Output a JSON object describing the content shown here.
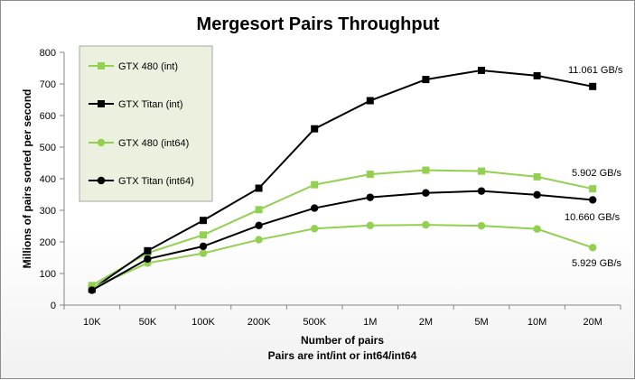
{
  "chart_data": {
    "type": "line",
    "title": "Mergesort Pairs Throughput",
    "xlabel": "Number of pairs",
    "xlabel_sub": "Pairs are int/int or int64/int64",
    "ylabel": "Millions of pairs sorted per second",
    "categories": [
      "10K",
      "50K",
      "100K",
      "200K",
      "500K",
      "1M",
      "2M",
      "5M",
      "10M",
      "20M"
    ],
    "ylim": [
      0,
      800
    ],
    "yticks": [
      0,
      100,
      200,
      300,
      400,
      500,
      600,
      700,
      800
    ],
    "grid": false,
    "legend_position": "top-left",
    "series": [
      {
        "name": "GTX 480 (int)",
        "color": "#92d050",
        "marker": "square",
        "values": [
          62,
          165,
          222,
          302,
          381,
          414,
          427,
          424,
          406,
          368
        ]
      },
      {
        "name": "GTX Titan (int)",
        "color": "#000000",
        "marker": "square",
        "values": [
          50,
          172,
          268,
          370,
          558,
          647,
          714,
          743,
          726,
          692
        ]
      },
      {
        "name": "GTX 480 (int64)",
        "color": "#92d050",
        "marker": "circle",
        "values": [
          54,
          133,
          164,
          207,
          242,
          252,
          254,
          251,
          241,
          182
        ]
      },
      {
        "name": "GTX Titan (int64)",
        "color": "#000000",
        "marker": "circle",
        "values": [
          47,
          146,
          186,
          252,
          307,
          341,
          355,
          361,
          349,
          333
        ]
      }
    ],
    "annotations": [
      "11.061 GB/s",
      "5.902 GB/s",
      "10.660 GB/s",
      "5.929 GB/s"
    ]
  }
}
